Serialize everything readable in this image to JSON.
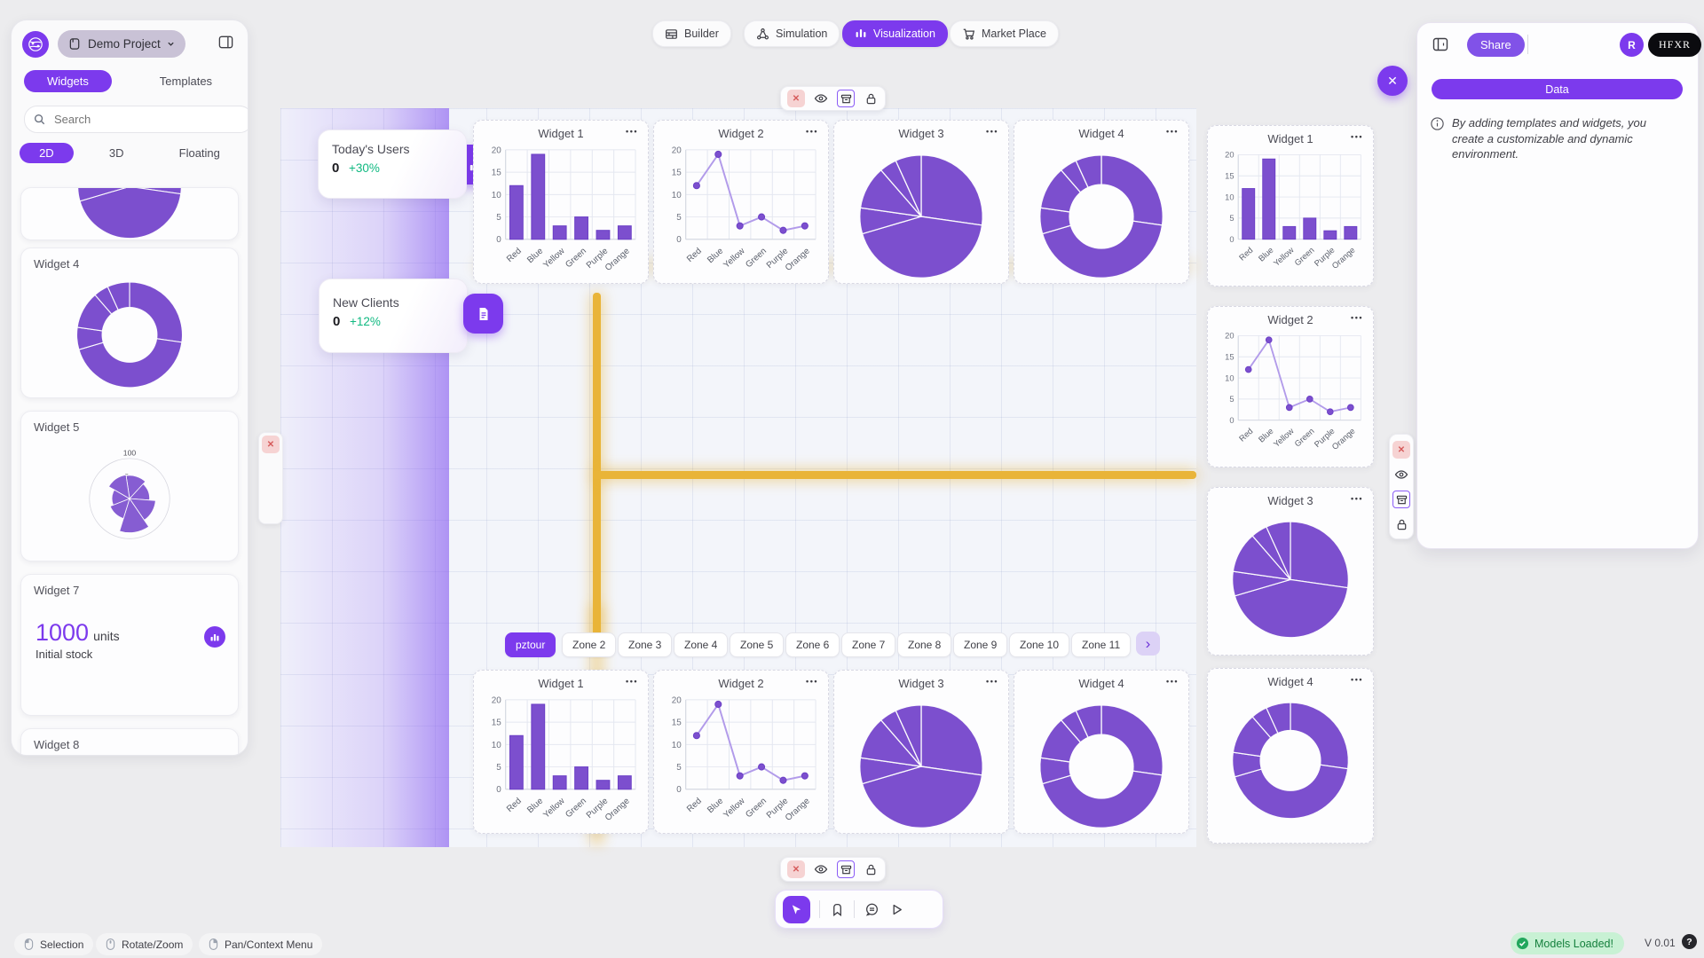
{
  "sidebar": {
    "project_name": "Demo Project",
    "tabs": [
      {
        "label": "Widgets",
        "active": true
      },
      {
        "label": "Templates",
        "active": false
      }
    ],
    "search_placeholder": "Search",
    "mode_tabs": [
      {
        "label": "2D",
        "active": true
      },
      {
        "label": "3D",
        "active": false
      },
      {
        "label": "Floating",
        "active": false
      }
    ],
    "cards": [
      {
        "title": "",
        "type": "pie-partial",
        "data": "default-series"
      },
      {
        "title": "Widget 4",
        "type": "donut",
        "data": "default-series"
      },
      {
        "title": "Widget 5",
        "type": "polar",
        "data": "widget5-polar"
      },
      {
        "title": "Widget 7",
        "type": "stat",
        "value": "1000",
        "unit": "units",
        "caption": "Initial stock"
      },
      {
        "title": "Widget 8",
        "type": "label"
      }
    ]
  },
  "top_nav": [
    {
      "label": "Builder",
      "icon": "builder-icon",
      "active": false
    },
    {
      "label": "Simulation",
      "icon": "simulation-icon",
      "active": false
    },
    {
      "label": "Visualization",
      "icon": "visualization-icon",
      "active": true
    },
    {
      "label": "Market Place",
      "icon": "marketplace-icon",
      "active": false
    }
  ],
  "stat_cards": [
    {
      "title": "Today's Users",
      "value": "0",
      "delta": "+30%",
      "icon": "bar-chart-icon"
    },
    {
      "title": "New Clients",
      "value": "0",
      "delta": "+12%",
      "icon": "document-icon"
    }
  ],
  "canvas": {
    "row1": [
      {
        "title": "Widget 1",
        "type": "bar",
        "data": "default-series"
      },
      {
        "title": "Widget 2",
        "type": "line",
        "data": "default-series"
      },
      {
        "title": "Widget 3",
        "type": "pie",
        "data": "default-series"
      },
      {
        "title": "Widget 4",
        "type": "donut",
        "data": "default-series"
      }
    ],
    "right_column": [
      {
        "title": "Widget 1",
        "type": "bar",
        "data": "default-series"
      },
      {
        "title": "Widget 2",
        "type": "line",
        "data": "default-series"
      },
      {
        "title": "Widget 3",
        "type": "pie",
        "data": "default-series"
      },
      {
        "title": "Widget 4",
        "type": "donut",
        "data": "default-series"
      }
    ],
    "row2": [
      {
        "title": "Widget 1",
        "type": "bar",
        "data": "default-series"
      },
      {
        "title": "Widget 2",
        "type": "line",
        "data": "default-series"
      },
      {
        "title": "Widget 3",
        "type": "pie",
        "data": "default-series"
      },
      {
        "title": "Widget 4",
        "type": "donut",
        "data": "default-series"
      }
    ]
  },
  "zones": {
    "tabs": [
      {
        "label": "pztour",
        "active": true
      },
      {
        "label": "Zone 2",
        "active": false
      },
      {
        "label": "Zone 3",
        "active": false
      },
      {
        "label": "Zone 4",
        "active": false
      },
      {
        "label": "Zone 5",
        "active": false
      },
      {
        "label": "Zone 6",
        "active": false
      },
      {
        "label": "Zone 7",
        "active": false
      },
      {
        "label": "Zone 8",
        "active": false
      },
      {
        "label": "Zone 9",
        "active": false
      },
      {
        "label": "Zone 10",
        "active": false
      },
      {
        "label": "Zone 11",
        "active": false
      }
    ]
  },
  "right_panel": {
    "share_label": "Share",
    "avatar_initial": "R",
    "brand_badge": "HFXR",
    "data_button_label": "Data",
    "info_text": "By adding templates and widgets, you create a customizable and dynamic environment."
  },
  "status_bar": {
    "modes": [
      {
        "label": "Selection",
        "icon": "mouse-left-icon"
      },
      {
        "label": "Rotate/Zoom",
        "icon": "mouse-middle-icon"
      },
      {
        "label": "Pan/Context Menu",
        "icon": "mouse-right-icon"
      }
    ],
    "models_status": "Models Loaded!",
    "version": "V 0.01"
  },
  "colors": {
    "accent": "#7C3AED",
    "chart_purple": "#7C4FCE",
    "amber_guide": "#E9B438",
    "delta_green": "#10B981"
  },
  "chart_data": [
    {
      "id": "default-series",
      "type": "bar",
      "categories": [
        "Red",
        "Blue",
        "Yellow",
        "Green",
        "Purple",
        "Orange"
      ],
      "values": [
        12,
        19,
        3,
        5,
        2,
        3
      ],
      "ylim": [
        0,
        20
      ],
      "yticks": [
        0,
        5,
        10,
        15,
        20
      ]
    },
    {
      "id": "widget5-polar",
      "type": "polarArea",
      "values": [
        58,
        50,
        65,
        85,
        52,
        44,
        60
      ],
      "rmax": 100,
      "ring_labels": [
        "100",
        "5"
      ]
    }
  ]
}
